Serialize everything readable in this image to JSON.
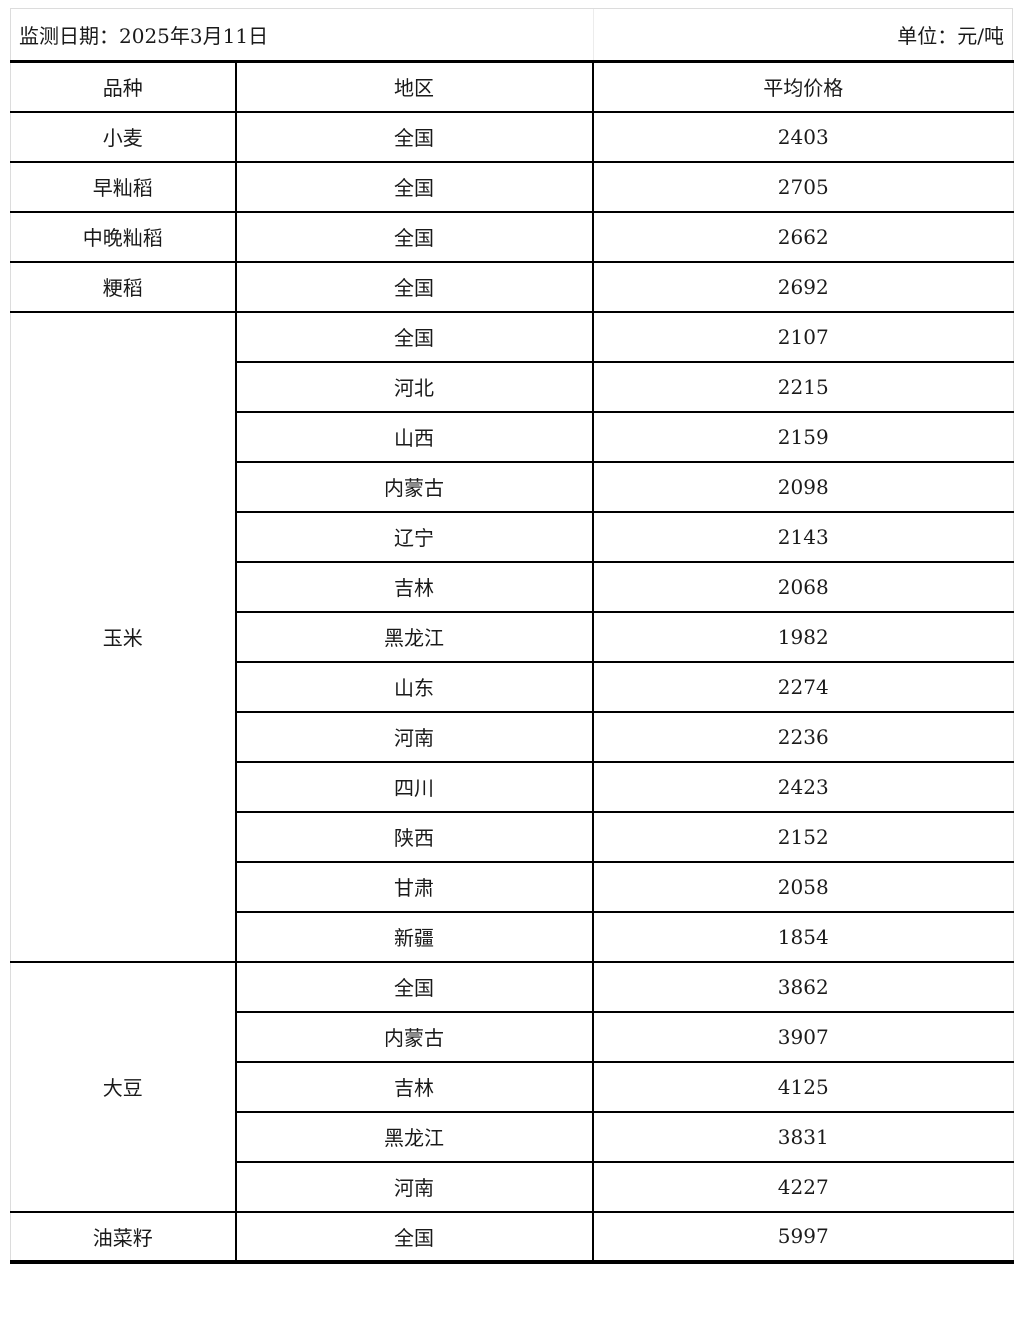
{
  "meta": {
    "date_label": "监测日期：2025年3月11日",
    "unit_label": "单位：元/吨"
  },
  "table": {
    "columns": {
      "variety": "品种",
      "region": "地区",
      "price": "平均价格"
    },
    "groups": [
      {
        "variety": "小麦",
        "rows": [
          {
            "region": "全国",
            "price": "2403",
            "bold": true
          }
        ]
      },
      {
        "variety": "早籼稻",
        "rows": [
          {
            "region": "全国",
            "price": "2705",
            "bold": true
          }
        ]
      },
      {
        "variety": "中晚籼稻",
        "rows": [
          {
            "region": "全国",
            "price": "2662",
            "bold": true
          }
        ]
      },
      {
        "variety": "粳稻",
        "rows": [
          {
            "region": "全国",
            "price": "2692",
            "bold": true
          }
        ]
      },
      {
        "variety": "玉米",
        "rows": [
          {
            "region": "全国",
            "price": "2107",
            "bold": true
          },
          {
            "region": "河北",
            "price": "2215",
            "bold": false
          },
          {
            "region": "山西",
            "price": "2159",
            "bold": false
          },
          {
            "region": "内蒙古",
            "price": "2098",
            "bold": false
          },
          {
            "region": "辽宁",
            "price": "2143",
            "bold": false
          },
          {
            "region": "吉林",
            "price": "2068",
            "bold": false
          },
          {
            "region": "黑龙江",
            "price": "1982",
            "bold": false
          },
          {
            "region": "山东",
            "price": "2274",
            "bold": false
          },
          {
            "region": "河南",
            "price": "2236",
            "bold": false
          },
          {
            "region": "四川",
            "price": "2423",
            "bold": false
          },
          {
            "region": "陕西",
            "price": "2152",
            "bold": false
          },
          {
            "region": "甘肃",
            "price": "2058",
            "bold": false
          },
          {
            "region": "新疆",
            "price": "1854",
            "bold": false
          }
        ]
      },
      {
        "variety": "大豆",
        "rows": [
          {
            "region": "全国",
            "price": "3862",
            "bold": true
          },
          {
            "region": "内蒙古",
            "price": "3907",
            "bold": false
          },
          {
            "region": "吉林",
            "price": "4125",
            "bold": false
          },
          {
            "region": "黑龙江",
            "price": "3831",
            "bold": false
          },
          {
            "region": "河南",
            "price": "4227",
            "bold": false
          }
        ]
      },
      {
        "variety": "油菜籽",
        "rows": [
          {
            "region": "全国",
            "price": "5997",
            "bold": true
          }
        ]
      }
    ]
  },
  "colors": {
    "border_black": "#000000",
    "border_light": "#dcdcdc",
    "text": "#1a1a1a",
    "background": "#ffffff"
  }
}
